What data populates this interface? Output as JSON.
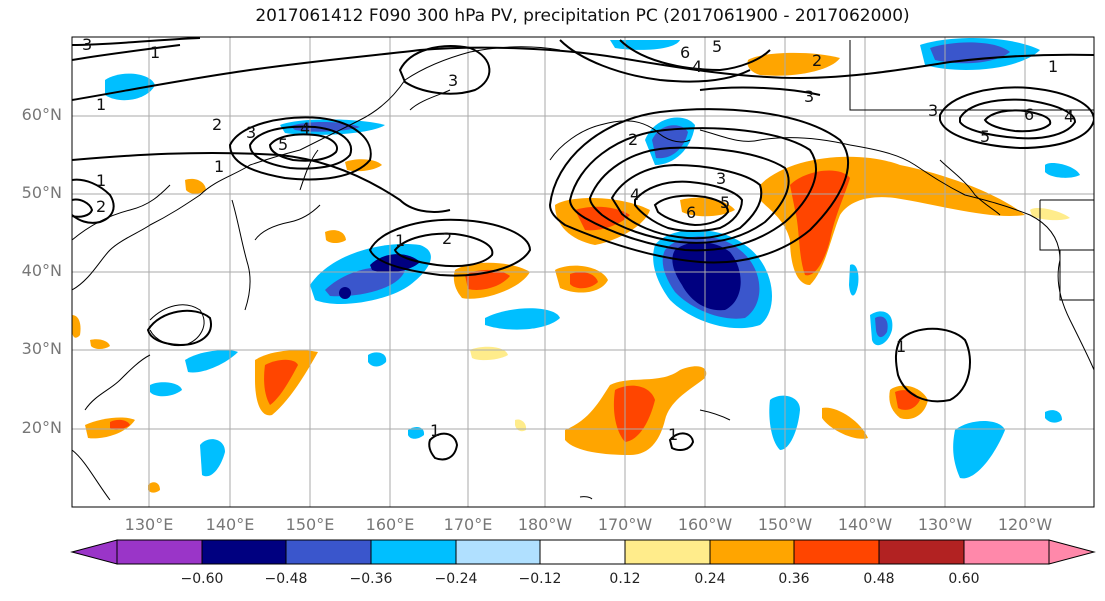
{
  "title": "2017061412 F090 300 hPa PV, precipitation PC (2017061900 - 2017062000)",
  "latitude_labels": [
    "60°N",
    "50°N",
    "40°N",
    "30°N",
    "20°N"
  ],
  "longitude_labels": [
    "130°E",
    "140°E",
    "150°E",
    "160°E",
    "170°E",
    "180°W",
    "170°W",
    "160°W",
    "150°W",
    "140°W",
    "130°W",
    "120°W"
  ],
  "colorbar": {
    "tick_labels": [
      "−0.60",
      "−0.48",
      "−0.36",
      "−0.24",
      "−0.12",
      "0.12",
      "0.24",
      "0.36",
      "0.48",
      "0.60"
    ],
    "colors": [
      "#9a35c8",
      "#000080",
      "#3a56cc",
      "#00bfff",
      "#b0e0ff",
      "#ffffff",
      "#ffec8b",
      "#ffa500",
      "#ff4500",
      "#b22222",
      "#ff88aa"
    ]
  },
  "pv_contour_labels": [
    "1",
    "2",
    "3",
    "4",
    "5",
    "6"
  ]
}
